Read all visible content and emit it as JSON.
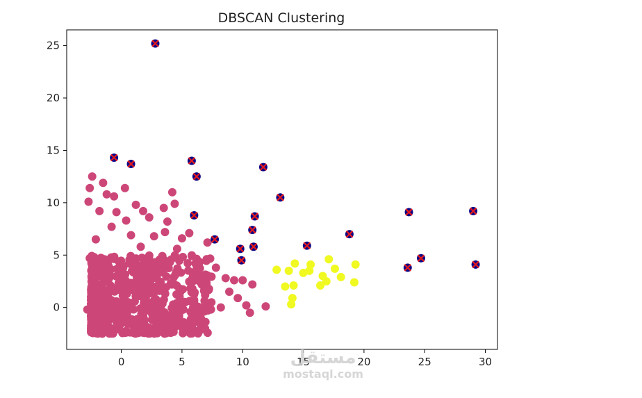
{
  "chart_data": {
    "type": "scatter",
    "title": "DBSCAN Clustering",
    "xlabel": "",
    "ylabel": "",
    "xlim": [
      -4.5,
      31
    ],
    "ylim": [
      -4,
      26.5
    ],
    "xticks": [
      0,
      5,
      10,
      15,
      20,
      25,
      30
    ],
    "yticks": [
      0,
      5,
      10,
      15,
      20,
      25
    ],
    "grid": false,
    "legend": "none",
    "colors": {
      "cluster_main": "#cc4778",
      "cluster_second": "#f0f921",
      "noise": "#0d0887",
      "noise_marker": "#e31a1c"
    },
    "series": [
      {
        "label_id": "cluster-0",
        "color_key": "cluster_main",
        "marker": "circle",
        "dense_core": {
          "x_range": [
            -2.5,
            7.5
          ],
          "y_range": [
            -2.5,
            5
          ],
          "count": 650
        },
        "points": [
          [
            -2.7,
            10.1
          ],
          [
            -2.6,
            11.4
          ],
          [
            -2.4,
            12.5
          ],
          [
            -1.5,
            11.9
          ],
          [
            -1.2,
            10.8
          ],
          [
            -0.6,
            10.6
          ],
          [
            0.3,
            11.4
          ],
          [
            -1.8,
            9.2
          ],
          [
            -0.4,
            9.1
          ],
          [
            0.4,
            8.3
          ],
          [
            1.2,
            9.8
          ],
          [
            1.8,
            9.2
          ],
          [
            2.3,
            8.6
          ],
          [
            3.5,
            9.5
          ],
          [
            4.2,
            11.0
          ],
          [
            4.4,
            9.9
          ],
          [
            3.8,
            8.2
          ],
          [
            3.6,
            7.2
          ],
          [
            2.7,
            6.8
          ],
          [
            4.6,
            5.6
          ],
          [
            5.8,
            4.9
          ],
          [
            6.4,
            3.9
          ],
          [
            7.1,
            6.2
          ],
          [
            7.8,
            3.8
          ],
          [
            8.6,
            2.8
          ],
          [
            9.3,
            2.6
          ],
          [
            10.0,
            2.6
          ],
          [
            10.8,
            2.2
          ],
          [
            9.6,
            0.9
          ],
          [
            10.3,
            0.2
          ],
          [
            10.6,
            -0.5
          ],
          [
            11.9,
            0.1
          ],
          [
            8.9,
            1.5
          ],
          [
            8.2,
            0.0
          ],
          [
            7.0,
            1.9
          ],
          [
            6.5,
            -1.0
          ],
          [
            5.5,
            -1.8
          ],
          [
            4.3,
            2.3
          ],
          [
            3.1,
            3.9
          ],
          [
            1.6,
            5.8
          ],
          [
            0.8,
            6.9
          ],
          [
            -0.8,
            7.7
          ],
          [
            -2.1,
            6.5
          ],
          [
            -2.6,
            4.7
          ],
          [
            -2.8,
            -0.2
          ],
          [
            -0.9,
            -2.2
          ],
          [
            1.4,
            -1.9
          ],
          [
            2.9,
            -1.4
          ],
          [
            5.0,
            6.6
          ],
          [
            5.6,
            7.1
          ]
        ]
      },
      {
        "label_id": "cluster-1",
        "color_key": "cluster_second",
        "marker": "circle",
        "points": [
          [
            12.8,
            3.6
          ],
          [
            13.5,
            2.0
          ],
          [
            13.8,
            3.5
          ],
          [
            14.0,
            0.3
          ],
          [
            14.1,
            0.9
          ],
          [
            14.2,
            2.1
          ],
          [
            14.3,
            4.2
          ],
          [
            15.0,
            3.3
          ],
          [
            15.5,
            3.5
          ],
          [
            15.6,
            4.1
          ],
          [
            16.4,
            2.1
          ],
          [
            16.6,
            3.0
          ],
          [
            16.9,
            2.5
          ],
          [
            17.1,
            4.6
          ],
          [
            17.6,
            3.7
          ],
          [
            18.1,
            2.9
          ],
          [
            19.2,
            2.4
          ],
          [
            19.3,
            4.1
          ]
        ]
      },
      {
        "label_id": "noise",
        "color_key": "noise",
        "marker": "circle-x",
        "points": [
          [
            2.8,
            25.2
          ],
          [
            -0.6,
            14.3
          ],
          [
            0.8,
            13.7
          ],
          [
            5.8,
            14.0
          ],
          [
            6.2,
            12.5
          ],
          [
            11.7,
            13.4
          ],
          [
            6.0,
            8.8
          ],
          [
            11.0,
            8.7
          ],
          [
            13.1,
            10.5
          ],
          [
            7.7,
            6.5
          ],
          [
            10.8,
            7.4
          ],
          [
            10.9,
            5.8
          ],
          [
            9.8,
            5.6
          ],
          [
            9.9,
            4.5
          ],
          [
            15.3,
            5.9
          ],
          [
            18.8,
            7.0
          ],
          [
            23.7,
            9.1
          ],
          [
            29.0,
            9.2
          ],
          [
            23.6,
            3.8
          ],
          [
            24.7,
            4.7
          ],
          [
            29.2,
            4.1
          ]
        ]
      }
    ]
  },
  "watermark": {
    "logo": "مستقل",
    "url": "mostaql.com"
  }
}
